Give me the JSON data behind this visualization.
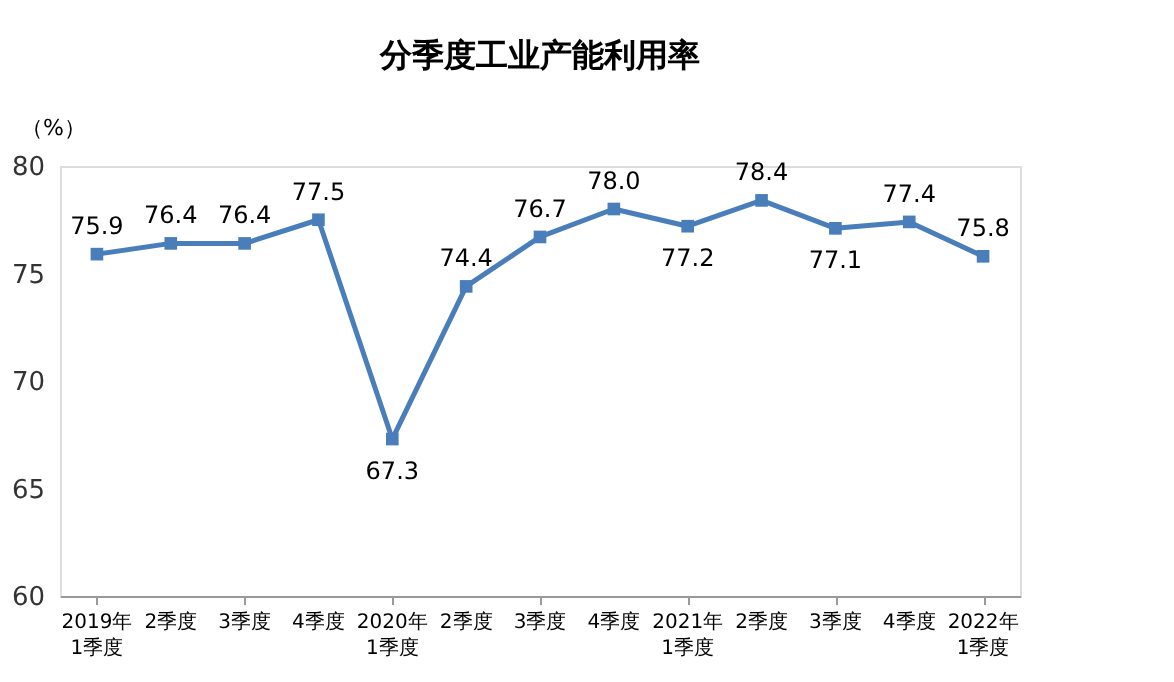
{
  "chart_data": {
    "type": "line",
    "title": "分季度工业产能利用率",
    "ylabel": "（%）",
    "categories": [
      "2019年\n1季度",
      "2季度",
      "3季度",
      "4季度",
      "2020年\n1季度",
      "2季度",
      "3季度",
      "4季度",
      "2021年\n1季度",
      "2季度",
      "3季度",
      "4季度",
      "2022年\n1季度"
    ],
    "series": [
      {
        "color": "#4a7ebb",
        "values": [
          75.9,
          76.4,
          76.4,
          77.5,
          67.3,
          74.4,
          76.7,
          78.0,
          77.2,
          78.4,
          77.1,
          77.4,
          75.8
        ],
        "value_labels": [
          "75.9",
          "76.4",
          "76.4",
          "77.5",
          "67.3",
          "74.4",
          "76.7",
          "78.0",
          "77.2",
          "78.4",
          "77.1",
          "77.4",
          "75.8"
        ]
      }
    ],
    "ylim": [
      60,
      80
    ],
    "yticks": [
      60,
      65,
      70,
      75,
      80
    ],
    "grid": false,
    "marker": "square",
    "line_style": "solid"
  }
}
